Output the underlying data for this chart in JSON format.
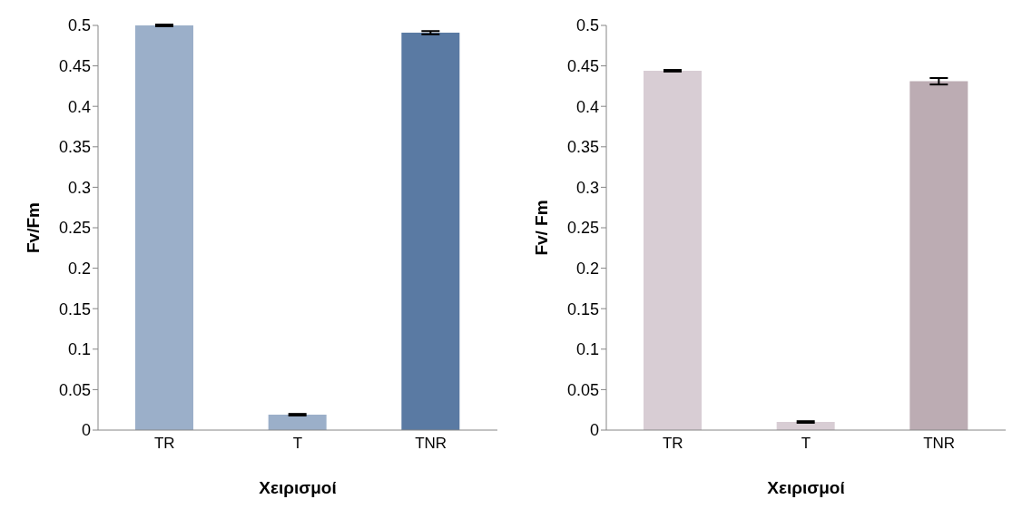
{
  "chart_data": [
    {
      "type": "bar",
      "categories": [
        "TR",
        "T",
        "TNR"
      ],
      "values": [
        0.5,
        0.019,
        0.491
      ],
      "colors": [
        "#9bafc9",
        "#9bafc9",
        "#5a7aa3"
      ],
      "errors": [
        0.001,
        0.001,
        0.002
      ],
      "xlabel": "Χειρισμοί",
      "ylabel": "Fv/Fm",
      "ylim": [
        0,
        0.5
      ],
      "yticks": [
        0,
        0.05,
        0.1,
        0.15,
        0.2,
        0.25,
        0.3,
        0.35,
        0.4,
        0.45,
        0.5
      ],
      "grid": false,
      "legend": false
    },
    {
      "type": "bar",
      "categories": [
        "TR",
        "T",
        "TNR"
      ],
      "values": [
        0.444,
        0.01,
        0.431
      ],
      "colors": [
        "#d8cdd4",
        "#d8cdd4",
        "#bcacb3"
      ],
      "errors": [
        0.001,
        0.001,
        0.004
      ],
      "xlabel": "Χειρισμοί",
      "ylabel": "Fv/ Fm",
      "ylim": [
        0,
        0.5
      ],
      "yticks": [
        0,
        0.05,
        0.1,
        0.15,
        0.2,
        0.25,
        0.3,
        0.35,
        0.4,
        0.45,
        0.5
      ],
      "grid": false,
      "legend": false
    }
  ]
}
